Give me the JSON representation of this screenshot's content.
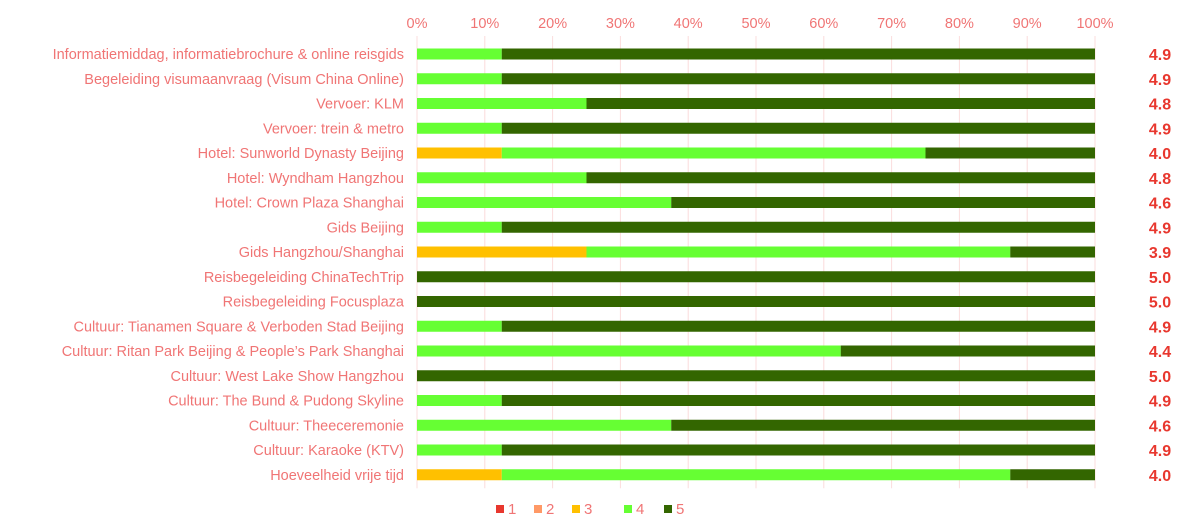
{
  "chart_data": {
    "type": "bar",
    "orientation": "horizontal",
    "stacked": "percent",
    "xlim": [
      0,
      100
    ],
    "x_ticks": [
      "0%",
      "10%",
      "20%",
      "30%",
      "40%",
      "50%",
      "60%",
      "70%",
      "80%",
      "90%",
      "100%"
    ],
    "x_axis_position": "top",
    "grid": true,
    "legend_position": "bottom",
    "categories": [
      "Informatiemiddag, informatiebrochure & online reisgids",
      "Begeleiding visumaanvraag (Visum China Online)",
      "Vervoer: KLM",
      "Vervoer: trein & metro",
      "Hotel: Sunworld Dynasty Beijing",
      "Hotel: Wyndham Hangzhou",
      "Hotel: Crown Plaza Shanghai",
      "Gids Beijing",
      "Gids Hangzhou/Shanghai",
      "Reisbegeleiding ChinaTechTrip",
      "Reisbegeleiding Focusplaza",
      "Cultuur: Tianamen Square & Verboden Stad Beijing",
      "Cultuur: Ritan Park Beijing & People’s Park Shanghai",
      "Cultuur: West Lake Show Hangzhou",
      "Cultuur: The Bund & Pudong Skyline",
      "Cultuur: Theeceremonie",
      "Cultuur: Karaoke (KTV)",
      "Hoeveelheid vrije tijd"
    ],
    "series": [
      {
        "name": "1",
        "color": "#e8372e",
        "values": [
          0,
          0,
          0,
          0,
          0,
          0,
          0,
          0,
          0,
          0,
          0,
          0,
          0,
          0,
          0,
          0,
          0,
          0
        ]
      },
      {
        "name": "2",
        "color": "#ff9966",
        "values": [
          0,
          0,
          0,
          0,
          0,
          0,
          0,
          0,
          0,
          0,
          0,
          0,
          0,
          0,
          0,
          0,
          0,
          0
        ]
      },
      {
        "name": "3",
        "color": "#ffc000",
        "values": [
          0,
          0,
          0,
          0,
          12.5,
          0,
          0,
          0,
          25,
          0,
          0,
          0,
          0,
          0,
          0,
          0,
          0,
          12.5
        ]
      },
      {
        "name": "4",
        "color": "#66ff33",
        "values": [
          12.5,
          12.5,
          25,
          12.5,
          62.5,
          25,
          37.5,
          12.5,
          62.5,
          0,
          0,
          12.5,
          62.5,
          0,
          12.5,
          37.5,
          12.5,
          75
        ]
      },
      {
        "name": "5",
        "color": "#336600",
        "values": [
          87.5,
          87.5,
          75,
          87.5,
          25,
          75,
          62.5,
          87.5,
          12.5,
          100,
          100,
          87.5,
          37.5,
          100,
          87.5,
          62.5,
          87.5,
          12.5
        ]
      }
    ],
    "scores": [
      "4.9",
      "4.9",
      "4.8",
      "4.9",
      "4.0",
      "4.8",
      "4.6",
      "4.9",
      "3.9",
      "5.0",
      "5.0",
      "4.9",
      "4.4",
      "5.0",
      "4.9",
      "4.6",
      "4.9",
      "4.0"
    ]
  }
}
